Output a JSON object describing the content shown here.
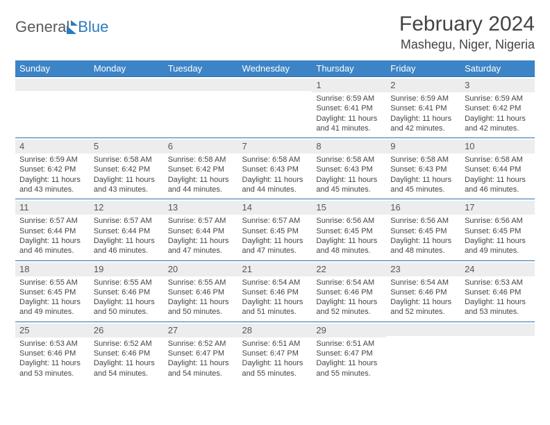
{
  "logo": {
    "part1": "General",
    "part2": "Blue"
  },
  "title": "February 2024",
  "location": "Mashegu, Niger, Nigeria",
  "colors": {
    "header_bg": "#3d84c6",
    "header_fg": "#ffffff",
    "row_divider": "#2f6da8",
    "daynum_bg": "#ededed",
    "text": "#444444"
  },
  "weekdays": [
    "Sunday",
    "Monday",
    "Tuesday",
    "Wednesday",
    "Thursday",
    "Friday",
    "Saturday"
  ],
  "weeks": [
    [
      null,
      null,
      null,
      null,
      {
        "n": "1",
        "sr": "6:59 AM",
        "ss": "6:41 PM",
        "dl": "11 hours and 41 minutes."
      },
      {
        "n": "2",
        "sr": "6:59 AM",
        "ss": "6:41 PM",
        "dl": "11 hours and 42 minutes."
      },
      {
        "n": "3",
        "sr": "6:59 AM",
        "ss": "6:42 PM",
        "dl": "11 hours and 42 minutes."
      }
    ],
    [
      {
        "n": "4",
        "sr": "6:59 AM",
        "ss": "6:42 PM",
        "dl": "11 hours and 43 minutes."
      },
      {
        "n": "5",
        "sr": "6:58 AM",
        "ss": "6:42 PM",
        "dl": "11 hours and 43 minutes."
      },
      {
        "n": "6",
        "sr": "6:58 AM",
        "ss": "6:42 PM",
        "dl": "11 hours and 44 minutes."
      },
      {
        "n": "7",
        "sr": "6:58 AM",
        "ss": "6:43 PM",
        "dl": "11 hours and 44 minutes."
      },
      {
        "n": "8",
        "sr": "6:58 AM",
        "ss": "6:43 PM",
        "dl": "11 hours and 45 minutes."
      },
      {
        "n": "9",
        "sr": "6:58 AM",
        "ss": "6:43 PM",
        "dl": "11 hours and 45 minutes."
      },
      {
        "n": "10",
        "sr": "6:58 AM",
        "ss": "6:44 PM",
        "dl": "11 hours and 46 minutes."
      }
    ],
    [
      {
        "n": "11",
        "sr": "6:57 AM",
        "ss": "6:44 PM",
        "dl": "11 hours and 46 minutes."
      },
      {
        "n": "12",
        "sr": "6:57 AM",
        "ss": "6:44 PM",
        "dl": "11 hours and 46 minutes."
      },
      {
        "n": "13",
        "sr": "6:57 AM",
        "ss": "6:44 PM",
        "dl": "11 hours and 47 minutes."
      },
      {
        "n": "14",
        "sr": "6:57 AM",
        "ss": "6:45 PM",
        "dl": "11 hours and 47 minutes."
      },
      {
        "n": "15",
        "sr": "6:56 AM",
        "ss": "6:45 PM",
        "dl": "11 hours and 48 minutes."
      },
      {
        "n": "16",
        "sr": "6:56 AM",
        "ss": "6:45 PM",
        "dl": "11 hours and 48 minutes."
      },
      {
        "n": "17",
        "sr": "6:56 AM",
        "ss": "6:45 PM",
        "dl": "11 hours and 49 minutes."
      }
    ],
    [
      {
        "n": "18",
        "sr": "6:55 AM",
        "ss": "6:45 PM",
        "dl": "11 hours and 49 minutes."
      },
      {
        "n": "19",
        "sr": "6:55 AM",
        "ss": "6:46 PM",
        "dl": "11 hours and 50 minutes."
      },
      {
        "n": "20",
        "sr": "6:55 AM",
        "ss": "6:46 PM",
        "dl": "11 hours and 50 minutes."
      },
      {
        "n": "21",
        "sr": "6:54 AM",
        "ss": "6:46 PM",
        "dl": "11 hours and 51 minutes."
      },
      {
        "n": "22",
        "sr": "6:54 AM",
        "ss": "6:46 PM",
        "dl": "11 hours and 52 minutes."
      },
      {
        "n": "23",
        "sr": "6:54 AM",
        "ss": "6:46 PM",
        "dl": "11 hours and 52 minutes."
      },
      {
        "n": "24",
        "sr": "6:53 AM",
        "ss": "6:46 PM",
        "dl": "11 hours and 53 minutes."
      }
    ],
    [
      {
        "n": "25",
        "sr": "6:53 AM",
        "ss": "6:46 PM",
        "dl": "11 hours and 53 minutes."
      },
      {
        "n": "26",
        "sr": "6:52 AM",
        "ss": "6:46 PM",
        "dl": "11 hours and 54 minutes."
      },
      {
        "n": "27",
        "sr": "6:52 AM",
        "ss": "6:47 PM",
        "dl": "11 hours and 54 minutes."
      },
      {
        "n": "28",
        "sr": "6:51 AM",
        "ss": "6:47 PM",
        "dl": "11 hours and 55 minutes."
      },
      {
        "n": "29",
        "sr": "6:51 AM",
        "ss": "6:47 PM",
        "dl": "11 hours and 55 minutes."
      },
      null,
      null
    ]
  ],
  "labels": {
    "sunrise": "Sunrise: ",
    "sunset": "Sunset: ",
    "daylight": "Daylight: "
  }
}
